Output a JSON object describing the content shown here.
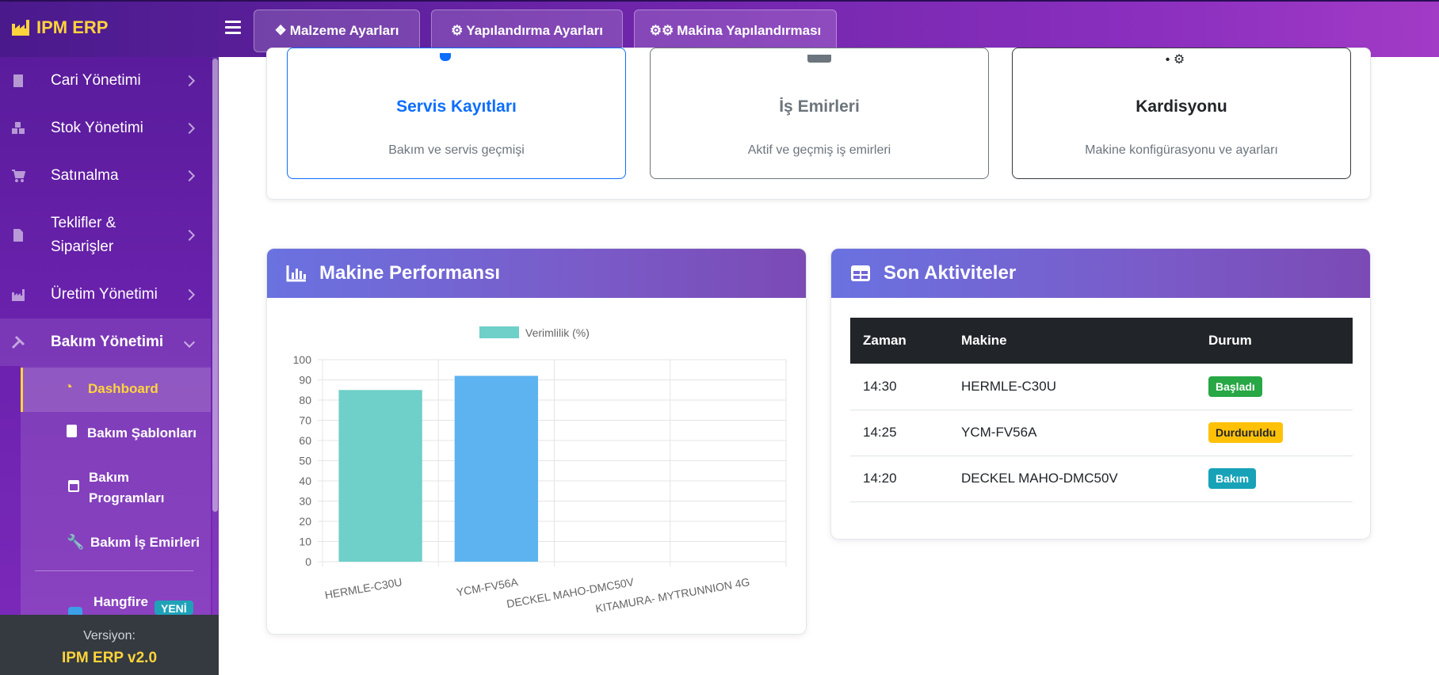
{
  "app": {
    "brand": "IPM ERP"
  },
  "topbar": {
    "buttons": [
      {
        "label": "Malzeme Ayarları",
        "icon": "cubes-icon"
      },
      {
        "label": "Yapılandırma Ayarları",
        "icon": "gear-icon"
      },
      {
        "label": "Makina Yapılandırması",
        "icon": "gears-icon"
      }
    ]
  },
  "sidebar": {
    "items": [
      {
        "label": "Cari Yönetimi",
        "icon": "building-icon"
      },
      {
        "label": "Stok Yönetimi",
        "icon": "boxes-icon"
      },
      {
        "label": "Satınalma",
        "icon": "cart-icon"
      },
      {
        "label_line1": "Teklifler &",
        "label_line2": "Siparişler",
        "icon": "invoice-icon"
      },
      {
        "label": "Üretim Yönetimi",
        "icon": "industry-icon"
      },
      {
        "label": "Bakım Yönetimi",
        "icon": "tools-icon",
        "expanded": true
      }
    ],
    "subitems": [
      {
        "label": "Dashboard",
        "icon": "gauge-icon",
        "active": true
      },
      {
        "label": "Bakım Şablonları",
        "icon": "clipboard-icon"
      },
      {
        "label_line1": "Bakım",
        "label_line2": "Programları",
        "icon": "calendar-icon"
      },
      {
        "label": "Bakım İş Emirleri",
        "icon": "wrench-icon"
      },
      {
        "label": "Hangfire",
        "icon": "robot-icon",
        "badge": "YENİ"
      }
    ],
    "version_label": "Versiyon:",
    "version_value": "IPM ERP v2.0"
  },
  "quick_cards": [
    {
      "title": "Servis Kayıtları",
      "desc": "Bakım ve servis geçmişi",
      "color": "#0d6efd",
      "border": "#0d6efd"
    },
    {
      "title": "İş Emirleri",
      "desc": "Aktif ve geçmiş iş emirleri",
      "color": "#6c757d",
      "border": "#6c757d"
    },
    {
      "title": "Kardisyonu",
      "desc": "Makine konfigürasyonu ve ayarları",
      "color": "#212529",
      "border": "#343a40"
    }
  ],
  "performance": {
    "title": "Makine Performansı",
    "chart_data": {
      "type": "bar",
      "categories": [
        "HERMLE-C30U",
        "YCM-FV56A",
        "DECKEL MAHO-DMC50V",
        "KITAMURA- MYTRUNNION 4G"
      ],
      "series": [
        {
          "name": "Verimlilik (%)",
          "values": [
            85,
            92,
            0,
            0
          ]
        }
      ],
      "bar_colors": [
        "#6fcfc9",
        "#5cb3ef"
      ],
      "legend_color": "#6fcfc9",
      "ylim": [
        0,
        100
      ],
      "yticks": [
        0,
        10,
        20,
        30,
        40,
        50,
        60,
        70,
        80,
        90,
        100
      ],
      "grid": true,
      "legend": "top"
    }
  },
  "activities": {
    "title": "Son Aktiviteler",
    "columns": [
      "Zaman",
      "Makine",
      "Durum"
    ],
    "rows": [
      {
        "time": "14:30",
        "machine": "HERMLE-C30U",
        "status": "Başladı",
        "status_color": "#28a745",
        "text_color": "#ffffff"
      },
      {
        "time": "14:25",
        "machine": "YCM-FV56A",
        "status": "Durduruldu",
        "status_color": "#ffc107",
        "text_color": "#212529"
      },
      {
        "time": "14:20",
        "machine": "DECKEL MAHO-DMC50V",
        "status": "Bakım",
        "status_color": "#17a2b8",
        "text_color": "#ffffff"
      }
    ]
  }
}
